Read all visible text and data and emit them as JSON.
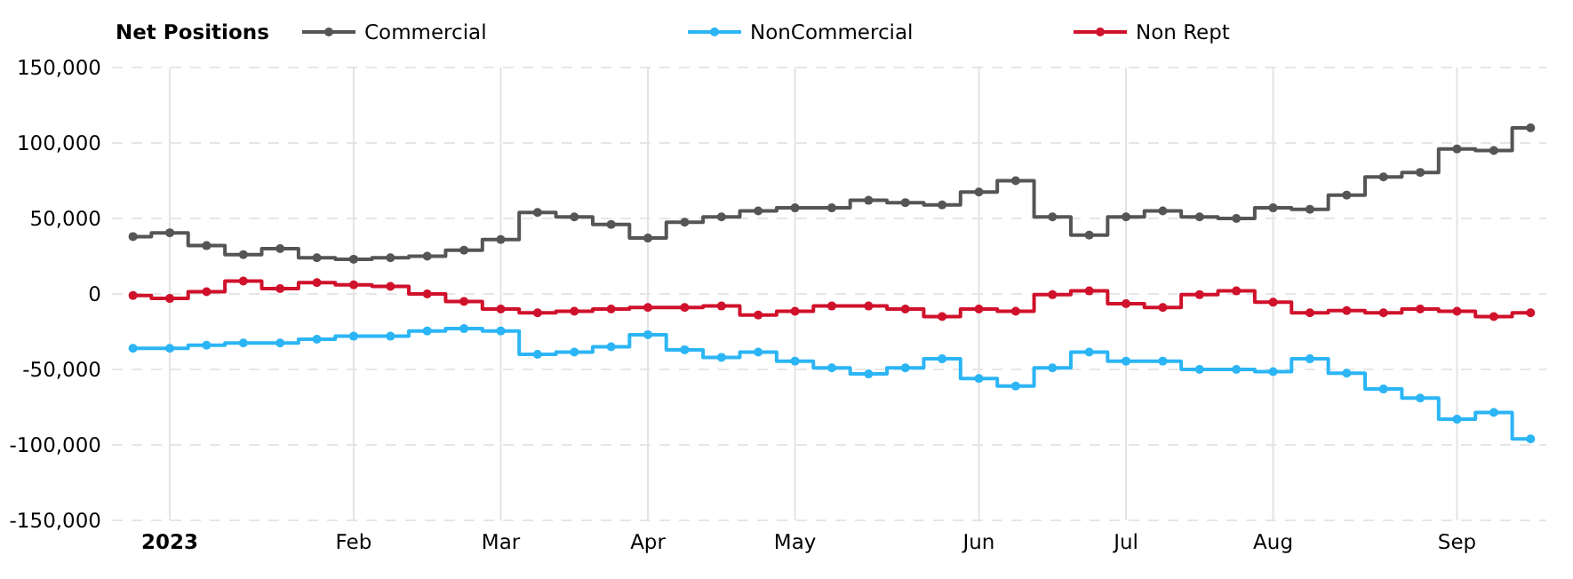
{
  "chart_data": {
    "type": "step",
    "legend_title": "Net Positions",
    "legend": "top",
    "grid": true,
    "marker": "circle",
    "line_style": "solid",
    "x": [
      "2022-12-27",
      "2023-01-03",
      "2023-01-10",
      "2023-01-17",
      "2023-01-24",
      "2023-01-31",
      "2023-02-07",
      "2023-02-14",
      "2023-02-21",
      "2023-02-28",
      "2023-03-07",
      "2023-03-14",
      "2023-03-21",
      "2023-03-28",
      "2023-04-04",
      "2023-04-11",
      "2023-04-18",
      "2023-04-25",
      "2023-05-02",
      "2023-05-09",
      "2023-05-16",
      "2023-05-23",
      "2023-05-30",
      "2023-06-06",
      "2023-06-13",
      "2023-06-20",
      "2023-06-27",
      "2023-07-04",
      "2023-07-11",
      "2023-07-18",
      "2023-07-25",
      "2023-08-01",
      "2023-08-08",
      "2023-08-15",
      "2023-08-22",
      "2023-08-29",
      "2023-09-05",
      "2023-09-12",
      "2023-09-19"
    ],
    "xlim": [
      "2022-12-23",
      "2023-09-22"
    ],
    "xticks": [
      {
        "value": "2023-01-03",
        "label": "2023"
      },
      {
        "value": "2023-02-07",
        "label": "Feb"
      },
      {
        "value": "2023-03-07",
        "label": "Mar"
      },
      {
        "value": "2023-04-04",
        "label": "Apr"
      },
      {
        "value": "2023-05-02",
        "label": "May"
      },
      {
        "value": "2023-06-06",
        "label": "Jun"
      },
      {
        "value": "2023-07-04",
        "label": "Jul"
      },
      {
        "value": "2023-08-01",
        "label": "Aug"
      },
      {
        "value": "2023-09-05",
        "label": "Sep"
      }
    ],
    "ylim": [
      -150000,
      150000
    ],
    "yticks": [
      {
        "value": -150000,
        "label": "-150,000"
      },
      {
        "value": -100000,
        "label": "-100,000"
      },
      {
        "value": -50000,
        "label": "-50,000"
      },
      {
        "value": 0,
        "label": "0"
      },
      {
        "value": 50000,
        "label": "50,000"
      },
      {
        "value": 100000,
        "label": "100,000"
      },
      {
        "value": 150000,
        "label": "150,000"
      }
    ],
    "series": [
      {
        "name": "Commercial",
        "color": "#555555",
        "values": [
          38000,
          40500,
          32000,
          26000,
          30000,
          24000,
          23000,
          24000,
          25000,
          29000,
          36000,
          54000,
          51000,
          46000,
          37000,
          47500,
          51000,
          55000,
          57000,
          57000,
          62000,
          60500,
          59000,
          67500,
          75000,
          51000,
          39000,
          51000,
          55000,
          51000,
          50000,
          57000,
          56000,
          65500,
          77500,
          80500,
          96000,
          95000,
          110000
        ]
      },
      {
        "name": "NonCommercial",
        "color": "#2bb5f5",
        "values": [
          -36000,
          -36000,
          -34000,
          -32500,
          -32500,
          -30000,
          -28000,
          -28000,
          -24500,
          -23000,
          -24500,
          -40000,
          -38500,
          -35000,
          -27000,
          -37000,
          -42000,
          -38500,
          -44500,
          -49000,
          -53000,
          -49000,
          -43000,
          -56000,
          -61000,
          -49000,
          -38500,
          -44500,
          -44500,
          -50000,
          -50000,
          -51500,
          -43000,
          -52500,
          -63000,
          -69000,
          -83000,
          -78500,
          -96000
        ]
      },
      {
        "name": "Non Rept",
        "color": "#d0112b",
        "values": [
          -1000,
          -3000,
          1500,
          8500,
          3500,
          7500,
          6000,
          5000,
          0,
          -5000,
          -10000,
          -12500,
          -11500,
          -10000,
          -9000,
          -9000,
          -8000,
          -14000,
          -11500,
          -8000,
          -8000,
          -10000,
          -15000,
          -10000,
          -11500,
          -500,
          2000,
          -6500,
          -9000,
          -500,
          2000,
          -5500,
          -12500,
          -11000,
          -12500,
          -10000,
          -11500,
          -15000,
          -12500
        ]
      }
    ]
  }
}
